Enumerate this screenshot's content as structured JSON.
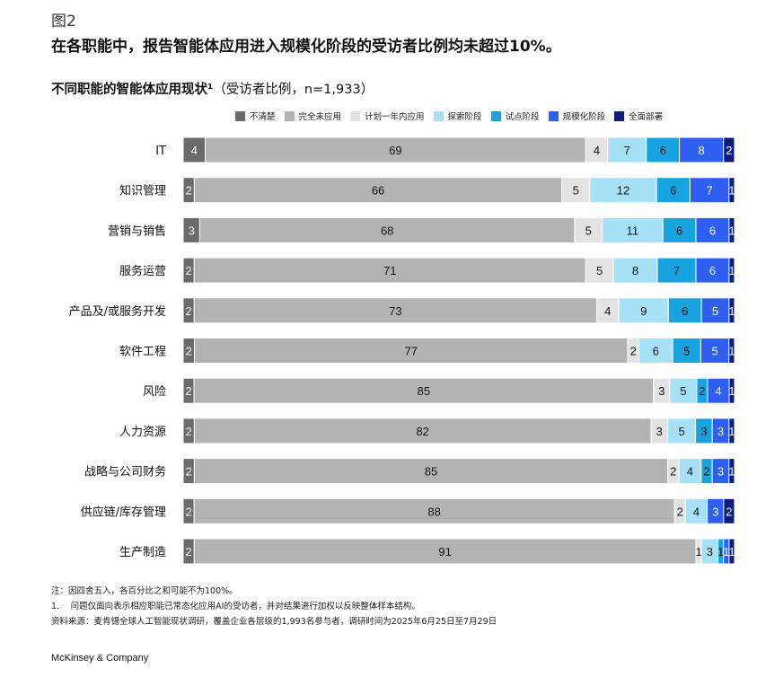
{
  "figure_label": "图2",
  "headline": "在各职能中，报告智能体应用进入规模化阶段的受访者比例均未超过10%。",
  "subtitle_main": "不同职能的智能体应用现状¹",
  "subtitle_note": "（受访者比例，n=1,933）",
  "legend": [
    {
      "label": "不清楚",
      "color": "#6b6b6b"
    },
    {
      "label": "完全未应用",
      "color": "#b3b3b3"
    },
    {
      "label": "计划一年内应用",
      "color": "#e3e3e3"
    },
    {
      "label": "探索阶段",
      "color": "#a6e1f7"
    },
    {
      "label": "试点阶段",
      "color": "#17a3e0"
    },
    {
      "label": "规模化阶段",
      "color": "#2f5ff0"
    },
    {
      "label": "全面部署",
      "color": "#0b1f7a"
    }
  ],
  "chart_data": {
    "type": "bar",
    "orientation": "horizontal",
    "stacked": true,
    "categories": [
      "IT",
      "知识管理",
      "营销与销售",
      "服务运营",
      "产品及/或服务开发",
      "软件工程",
      "风险",
      "人力资源",
      "战略与公司财务",
      "供应链/库存管理",
      "生产制造"
    ],
    "series": [
      {
        "name": "不清楚",
        "color": "#6b6b6b",
        "label_color": "#ffffff",
        "values": [
          4,
          2,
          3,
          2,
          2,
          2,
          2,
          2,
          2,
          2,
          2
        ]
      },
      {
        "name": "完全未应用",
        "color": "#b3b3b3",
        "label_color": "#111111",
        "values": [
          69,
          66,
          68,
          71,
          73,
          77,
          85,
          82,
          85,
          88,
          91
        ]
      },
      {
        "name": "计划一年内应用",
        "color": "#e3e3e3",
        "label_color": "#111111",
        "values": [
          4,
          5,
          5,
          5,
          4,
          2,
          3,
          3,
          2,
          2,
          1
        ]
      },
      {
        "name": "探索阶段",
        "color": "#a6e1f7",
        "label_color": "#111111",
        "values": [
          7,
          12,
          11,
          8,
          9,
          6,
          5,
          5,
          4,
          4,
          3
        ]
      },
      {
        "name": "试点阶段",
        "color": "#17a3e0",
        "label_color": "#111111",
        "values": [
          6,
          6,
          6,
          7,
          6,
          5,
          2,
          3,
          2,
          0,
          1
        ]
      },
      {
        "name": "规模化阶段",
        "color": "#2f5ff0",
        "label_color": "#ffffff",
        "values": [
          8,
          7,
          6,
          6,
          5,
          5,
          4,
          3,
          3,
          3,
          1
        ]
      },
      {
        "name": "全面部署",
        "color": "#0b1f7a",
        "label_color": "#ffffff",
        "values": [
          2,
          1,
          1,
          1,
          1,
          1,
          1,
          1,
          1,
          2,
          1
        ]
      }
    ]
  },
  "notes": {
    "line1": "注：因四舍五入，各百分比之和可能不为100%。",
    "line2": "1.　 问题仅面向表示相应职能已常态化应用AI的受访者，并对结果进行加权以反映整体样本结构。",
    "line3": "资料来源：麦肯锡全球人工智能现状调研，覆盖企业各层级的1,993名参与者，调研时间为2025年6月25日至7月29日"
  },
  "brand": "McKinsey & Company"
}
